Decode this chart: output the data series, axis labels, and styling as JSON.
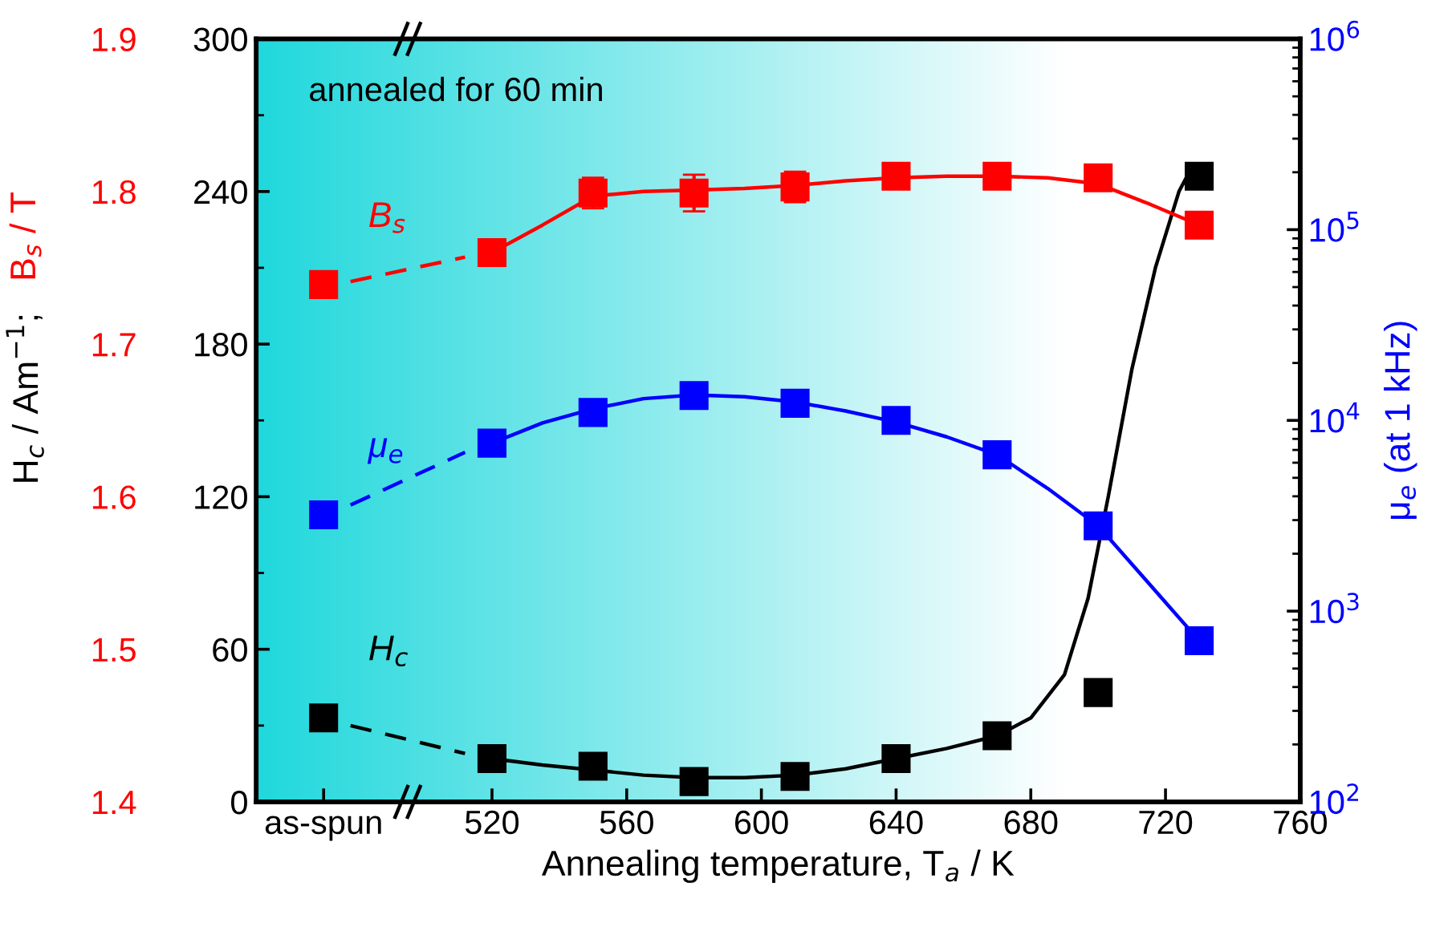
{
  "chart_data": {
    "type": "scatter",
    "annotations": [
      "annealed for 60 min"
    ],
    "xlabel": "Annealing temperature, T$_{a}$ / K",
    "ylabel": "H$_{c}$ / Am$^{−1}$;",
    "y3label": "B$_{s}$ / T",
    "y2label": "μ$_{e}$ (at 1 kHz)",
    "xlim": [
      450,
      760
    ],
    "xticks": [
      {
        "value": 470,
        "label": "as-spun"
      },
      520,
      560,
      600,
      640,
      680,
      720,
      760
    ],
    "ylim": [
      0,
      300
    ],
    "yticks": [
      0,
      60,
      120,
      180,
      240,
      300
    ],
    "y3lim": [
      1.4,
      1.9
    ],
    "y3ticks": [
      1.4,
      1.5,
      1.6,
      1.7,
      1.8,
      1.9
    ],
    "y2lim": [
      100,
      1000000
    ],
    "y2ticks": [
      {
        "value": 100,
        "label": "10$^{2}$"
      },
      {
        "value": 1000,
        "label": "10$^{3}$"
      },
      {
        "value": 10000,
        "label": "10$^{4}$"
      },
      {
        "value": 100000,
        "label": "10$^{5}$"
      },
      {
        "value": 1000000,
        "label": "10$^{6}$"
      }
    ],
    "log": "y2",
    "grid": false,
    "marker": "square",
    "bands": [
      {
        "axis": "x",
        "from": 450,
        "to": 690,
        "color": "#20d8dc"
      }
    ],
    "series": [
      {
        "name": "B$_{s}$",
        "axis": "y3",
        "color": "#ff0000",
        "x": [
          470,
          520,
          550,
          580,
          610,
          640,
          670,
          700,
          730
        ],
        "values": [
          1.739,
          1.76,
          1.799,
          1.799,
          1.803,
          1.81,
          1.81,
          1.809,
          1.778
        ],
        "errors": [
          0.006,
          0.006,
          0.01,
          0.012,
          0.01,
          0.007,
          0.005,
          0.007,
          0.008
        ]
      },
      {
        "type": "line",
        "axis": "y3",
        "color": "#ff0000",
        "line_style": "dashed",
        "marker": "none",
        "x": [
          478,
          512
        ],
        "values": [
          1.741,
          1.757
        ]
      },
      {
        "type": "line",
        "axis": "y3",
        "color": "#ff0000",
        "line_style": "solid",
        "marker": "none",
        "x": [
          520,
          535,
          550,
          565,
          580,
          595,
          610,
          625,
          640,
          655,
          670,
          685,
          700,
          715,
          730
        ],
        "values": [
          1.76,
          1.778,
          1.797,
          1.8,
          1.801,
          1.802,
          1.804,
          1.807,
          1.809,
          1.81,
          1.81,
          1.809,
          1.805,
          1.792,
          1.778
        ]
      },
      {
        "name": "μ$_{e}$",
        "axis": "y2",
        "color": "#0000ff",
        "x": [
          470,
          520,
          550,
          580,
          610,
          640,
          670,
          700,
          730
        ],
        "values": [
          3200,
          7600,
          11000,
          13500,
          12300,
          10000,
          6600,
          2800,
          700
        ]
      },
      {
        "type": "line",
        "axis": "y2",
        "color": "#0000ff",
        "line_style": "dashed",
        "marker": "none",
        "x": [
          478,
          512
        ],
        "values": [
          3600,
          6800
        ]
      },
      {
        "type": "line",
        "axis": "y2",
        "color": "#0000ff",
        "line_style": "solid",
        "marker": "none",
        "x": [
          520,
          535,
          550,
          565,
          580,
          595,
          610,
          625,
          640,
          655,
          670,
          685,
          700,
          715,
          730
        ],
        "values": [
          7600,
          9700,
          11500,
          13000,
          13600,
          13300,
          12500,
          11200,
          9800,
          8200,
          6600,
          4400,
          2800,
          1400,
          700
        ]
      },
      {
        "name": "H$_{c}$",
        "axis": "y",
        "color": "#000000",
        "x": [
          470,
          520,
          550,
          580,
          610,
          640,
          670,
          700,
          730
        ],
        "values": [
          33,
          17,
          14,
          8,
          10,
          17,
          26,
          43,
          246
        ]
      },
      {
        "type": "line",
        "axis": "y",
        "color": "#000000",
        "line_style": "dashed",
        "marker": "none",
        "x": [
          478,
          512
        ],
        "values": [
          30,
          19
        ]
      },
      {
        "type": "line",
        "axis": "y",
        "color": "#000000",
        "line_style": "solid",
        "marker": "none",
        "x": [
          520,
          535,
          550,
          565,
          580,
          595,
          610,
          625,
          640,
          655,
          670,
          680,
          690,
          697,
          703,
          710,
          717,
          724,
          728
        ],
        "values": [
          17,
          14.5,
          12.5,
          10.5,
          9.5,
          9.5,
          10.5,
          13,
          17,
          21,
          26,
          33,
          50,
          80,
          120,
          170,
          210,
          240,
          250
        ]
      }
    ]
  }
}
